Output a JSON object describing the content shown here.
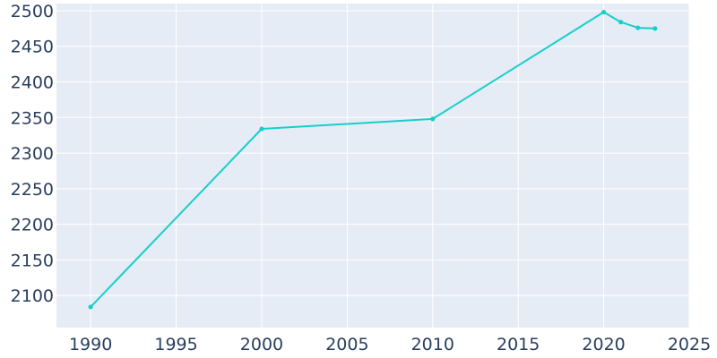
{
  "chart_data": {
    "type": "line",
    "title": "",
    "xlabel": "",
    "ylabel": "",
    "xlim": [
      1988,
      2025
    ],
    "ylim": [
      2055,
      2510
    ],
    "x_ticks": [
      1990,
      1995,
      2000,
      2005,
      2010,
      2015,
      2020,
      2025
    ],
    "y_ticks": [
      2100,
      2150,
      2200,
      2250,
      2300,
      2350,
      2400,
      2450,
      2500
    ],
    "grid": true,
    "legend": "none",
    "series": [
      {
        "x": [
          1990,
          2000,
          2010,
          2020,
          2021,
          2022,
          2023
        ],
        "y": [
          2084,
          2334,
          2348,
          2498,
          2484,
          2476,
          2475
        ]
      }
    ]
  },
  "colors": {
    "plot_background": "#e5ecf6",
    "grid": "#ffffff",
    "line": "#17cfc9",
    "tick_text": "#2a3f5f"
  }
}
